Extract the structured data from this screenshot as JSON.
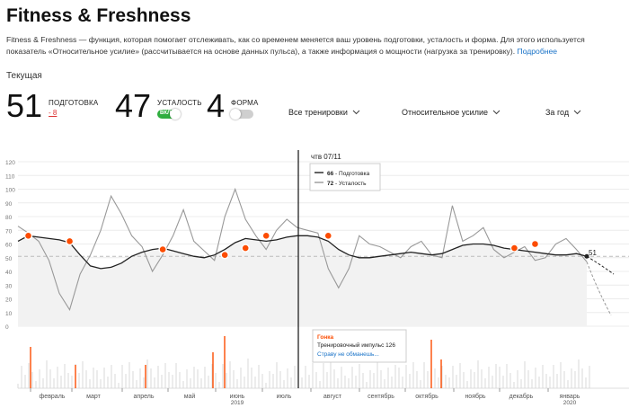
{
  "title": "Fitness & Freshness",
  "description": "Fitness & Freshness — функция, которая помогает отслеживать, как со временем меняется ваш уровень подготовки, усталость и форма. Для этого используется показатель «Относительное усилие» (рассчитывается на основе данных пульса), а также информация о мощности (нагрузка за тренировку).",
  "learn_more": "Подробнее",
  "current_label": "Текущая",
  "metrics": {
    "fitness": {
      "value": "51",
      "label": "ПОДГОТОВКА",
      "delta": "- 8"
    },
    "fatigue": {
      "value": "47",
      "label": "УСТАЛОСТЬ",
      "toggle_on": true,
      "toggle_text": "ВКЛ"
    },
    "form": {
      "value": "4",
      "label": "ФОРМА",
      "toggle_on": false
    }
  },
  "filters": {
    "activities": "Все тренировки",
    "effort": "Относительное усилие",
    "range": "За год"
  },
  "colors": {
    "accent": "#fc4c02",
    "fitness": "#222222",
    "fatigue": "#999999",
    "toggle_on": "#2fae3f"
  },
  "tooltip": {
    "date": "чтв 07/11",
    "fitness_value": "66",
    "fitness_label": "Подготовка",
    "fatigue_value": "72",
    "fatigue_label": "Усталость"
  },
  "activity_tooltip": {
    "type": "Гонка",
    "impulse_text": "Тренировочный импульс 126",
    "activity_name": "Страву не обманешь..."
  },
  "current_fitness_label": "51",
  "chart_data": {
    "type": "line",
    "x_labels": [
      "февраль",
      "март",
      "апрель",
      "май",
      "июнь",
      "июль",
      "август",
      "сентябрь",
      "октябрь",
      "ноябрь",
      "декабрь",
      "январь"
    ],
    "year_labels": [
      "2019",
      "2020"
    ],
    "yticks": [
      0,
      10,
      20,
      30,
      40,
      50,
      60,
      70,
      80,
      90,
      100,
      110,
      120
    ],
    "ylim": [
      0,
      120
    ],
    "grid": true,
    "series": [
      {
        "name": "Подготовка",
        "values": [
          62,
          66,
          65,
          64,
          63,
          61,
          52,
          44,
          42,
          43,
          46,
          51,
          54,
          56,
          57,
          55,
          53,
          51,
          50,
          52,
          56,
          61,
          64,
          63,
          62,
          63,
          65,
          66,
          66,
          65,
          62,
          56,
          52,
          50,
          50,
          51,
          52,
          53,
          54,
          53,
          52,
          53,
          56,
          59,
          60,
          60,
          59,
          57,
          56,
          55,
          54,
          53,
          52,
          52,
          53,
          51
        ]
      },
      {
        "name": "Усталость",
        "values": [
          73,
          68,
          62,
          48,
          24,
          12,
          38,
          52,
          70,
          95,
          82,
          66,
          58,
          40,
          52,
          66,
          85,
          62,
          55,
          48,
          80,
          100,
          78,
          66,
          56,
          70,
          78,
          72,
          70,
          68,
          42,
          28,
          42,
          66,
          60,
          58,
          54,
          50,
          58,
          62,
          52,
          50,
          88,
          62,
          66,
          72,
          56,
          50,
          54,
          58,
          48,
          50,
          60,
          64,
          56,
          47
        ]
      }
    ],
    "race_markers_fitness": [
      66,
      62,
      56,
      52,
      57,
      66,
      66,
      57,
      60
    ],
    "reference_line": 51
  }
}
